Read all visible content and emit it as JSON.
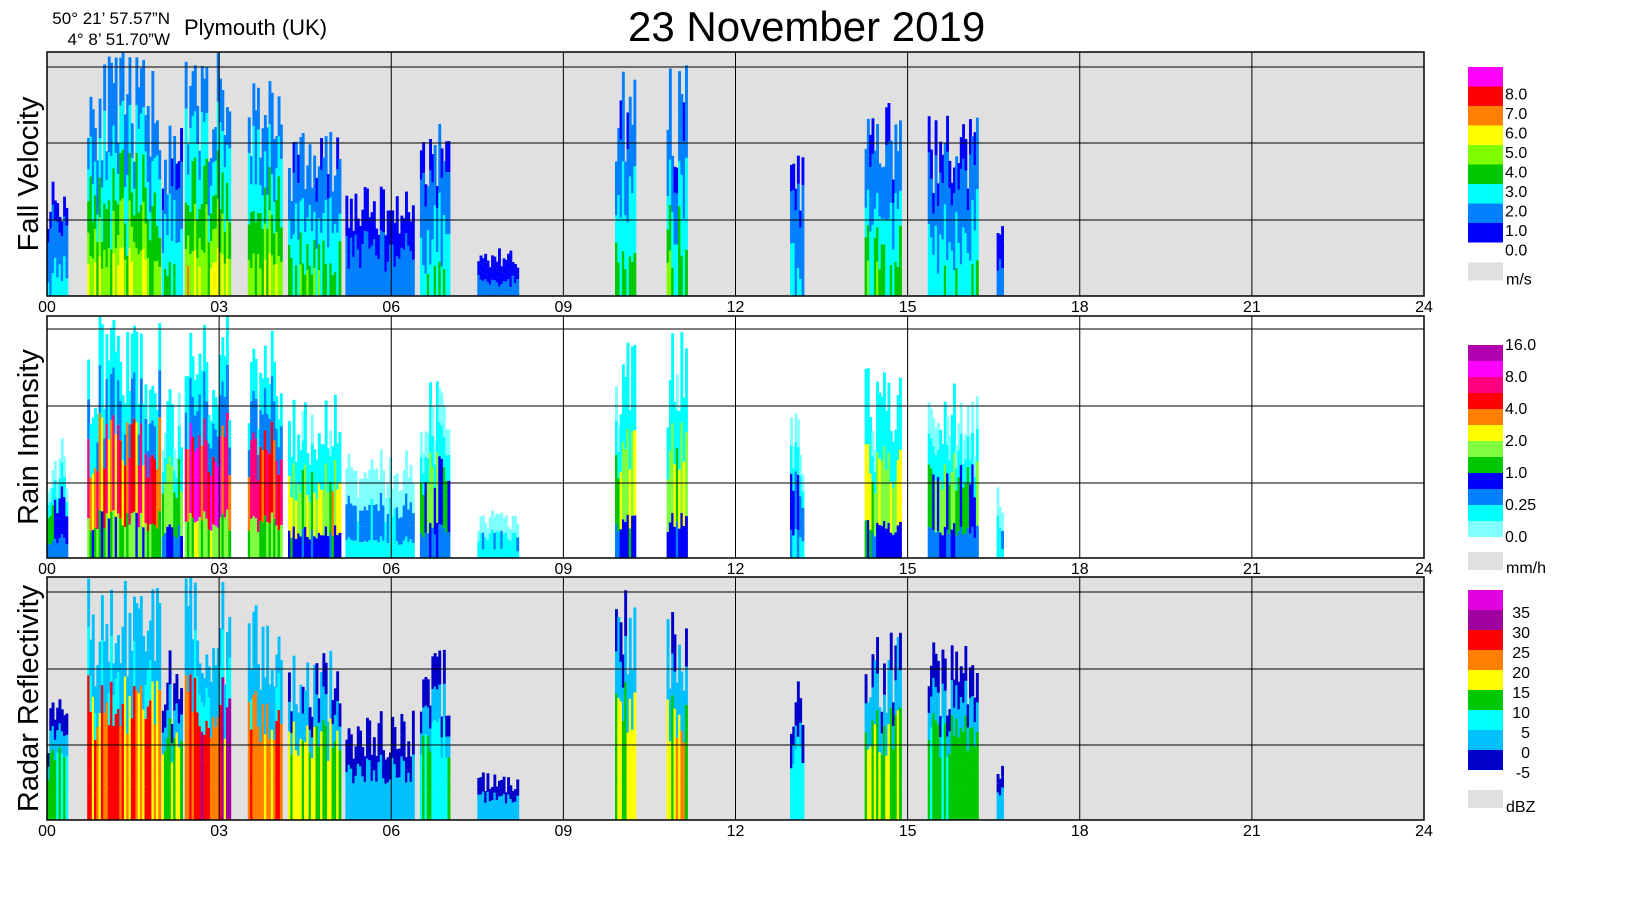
{
  "header": {
    "lat": "50° 21’ 57.57”N",
    "lon": "4°  8’ 51.70”W",
    "location": "Plymouth (UK)",
    "title": "23 November  2019"
  },
  "chart_data": [
    {
      "type": "heatmap",
      "ylabel": "Fall Velocity",
      "xlabel": "",
      "x_ticks": [
        "00",
        "03",
        "06",
        "09",
        "12",
        "15",
        "18",
        "21",
        "24"
      ],
      "xlim": [
        0,
        24
      ],
      "legend": {
        "unit": "m/s",
        "labels": [
          "8.0",
          "7.0",
          "6.0",
          "5.0",
          "4.0",
          "3.0",
          "2.0",
          "1.0",
          "0.0"
        ],
        "colors": [
          "#ff00ff",
          "#ff0000",
          "#ff8000",
          "#ffff00",
          "#80ff00",
          "#00c800",
          "#00ffff",
          "#0080ff",
          "#0000ff"
        ],
        "nodata_color": "#e0e0e0"
      },
      "background": "#e0e0e0"
    },
    {
      "type": "heatmap",
      "ylabel": "Rain Intensity",
      "xlabel": "",
      "x_ticks": [
        "00",
        "03",
        "06",
        "09",
        "12",
        "15",
        "18",
        "21",
        "24"
      ],
      "xlim": [
        0,
        24
      ],
      "legend": {
        "unit": "mm/h",
        "labels": [
          "16.0",
          "8.0",
          "4.0",
          "2.0",
          "1.0",
          "0.25",
          "0.0"
        ],
        "colors": [
          "#b000b0",
          "#ff00ff",
          "#ff0080",
          "#ff0000",
          "#ff8000",
          "#ffff00",
          "#80ff40",
          "#00c800",
          "#0000ff",
          "#0080ff",
          "#00ffff",
          "#80ffff"
        ],
        "nodata_color": "#e0e0e0"
      },
      "background": "#ffffff"
    },
    {
      "type": "heatmap",
      "ylabel": "Radar Reflectivity",
      "xlabel": "",
      "x_ticks": [
        "00",
        "03",
        "06",
        "09",
        "12",
        "15",
        "18",
        "21",
        "24"
      ],
      "xlim": [
        0,
        24
      ],
      "legend": {
        "unit": "dBZ",
        "labels": [
          "35",
          "30",
          "25",
          "20",
          "15",
          "10",
          "5",
          "0",
          "-5"
        ],
        "colors": [
          "#e000e0",
          "#a000a0",
          "#ff0000",
          "#ff8000",
          "#ffff00",
          "#00c800",
          "#00ffff",
          "#00c0ff",
          "#0000c8"
        ],
        "nodata_color": "#e0e0e0"
      },
      "background": "#e0e0e0"
    }
  ],
  "precip_events_hours": [
    {
      "start": 0.0,
      "end": 0.35,
      "depth": 0.5,
      "strength": 0.4
    },
    {
      "start": 0.7,
      "end": 1.95,
      "depth": 1.0,
      "strength": 0.85
    },
    {
      "start": 2.0,
      "end": 2.35,
      "depth": 0.7,
      "strength": 0.5
    },
    {
      "start": 2.4,
      "end": 3.2,
      "depth": 1.0,
      "strength": 0.95
    },
    {
      "start": 3.5,
      "end": 4.1,
      "depth": 0.95,
      "strength": 0.85
    },
    {
      "start": 4.2,
      "end": 5.1,
      "depth": 0.7,
      "strength": 0.6
    },
    {
      "start": 5.2,
      "end": 6.4,
      "depth": 0.45,
      "strength": 0.2
    },
    {
      "start": 6.5,
      "end": 7.0,
      "depth": 0.75,
      "strength": 0.45
    },
    {
      "start": 7.5,
      "end": 8.2,
      "depth": 0.2,
      "strength": 0.15
    },
    {
      "start": 9.9,
      "end": 10.25,
      "depth": 0.95,
      "strength": 0.6
    },
    {
      "start": 10.8,
      "end": 11.15,
      "depth": 0.95,
      "strength": 0.65
    },
    {
      "start": 12.95,
      "end": 13.15,
      "depth": 0.6,
      "strength": 0.35
    },
    {
      "start": 14.25,
      "end": 14.85,
      "depth": 0.8,
      "strength": 0.6
    },
    {
      "start": 15.35,
      "end": 16.2,
      "depth": 0.75,
      "strength": 0.45
    },
    {
      "start": 16.55,
      "end": 16.65,
      "depth": 0.3,
      "strength": 0.15
    }
  ]
}
